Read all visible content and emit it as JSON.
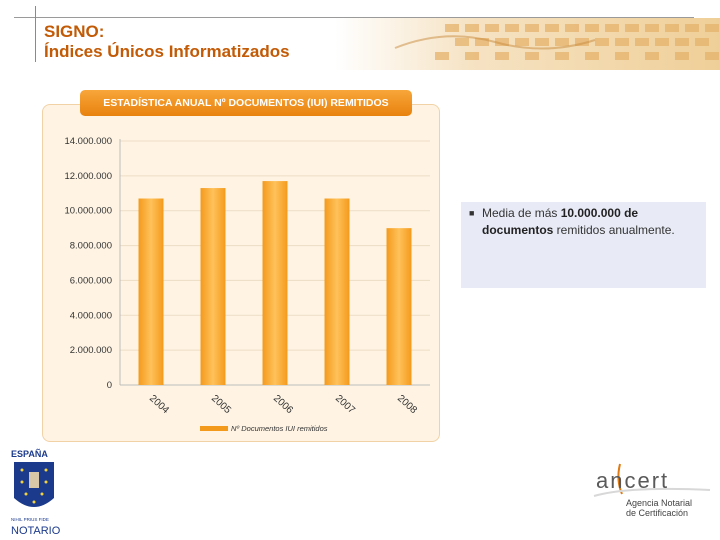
{
  "slide": {
    "title_line1": "SIGNO:",
    "title_line2": "Índices Únicos Informatizados"
  },
  "chart_data": {
    "type": "bar",
    "title": "ESTADÍSTICA ANUAL Nº DOCUMENTOS (IUI) REMITIDOS",
    "categories": [
      "2004",
      "2005",
      "2006",
      "2007",
      "2008"
    ],
    "series": [
      {
        "name": "Nº Documentos IUI remitidos",
        "values": [
          10700000,
          11300000,
          11700000,
          10700000,
          9000000
        ]
      }
    ],
    "yticks": [
      "0",
      "2.000.000",
      "4.000.000",
      "6.000.000",
      "8.000.000",
      "10.000.000",
      "12.000.000",
      "14.000.000"
    ],
    "ylim": [
      0,
      14000000
    ],
    "grid": true,
    "legend_position": "bottom",
    "colors": {
      "bar": "#f39a1c",
      "bar_light": "#ffc25a",
      "panel": "#fff4e4",
      "header": "#f08a14"
    }
  },
  "info": {
    "text_prefix": "Media de más ",
    "text_bold": "10.000.000 de documentos",
    "text_suffix": " remitidos anualmente."
  },
  "logos": {
    "espana_top": "ESPAÑA",
    "espana_motto": "NIHIL PRIUS FIDE",
    "espana_bottom": "NOTARIO",
    "ancert_word": "ancert",
    "ancert_line1": "Agencia Notarial",
    "ancert_line2": "de Certificación"
  }
}
